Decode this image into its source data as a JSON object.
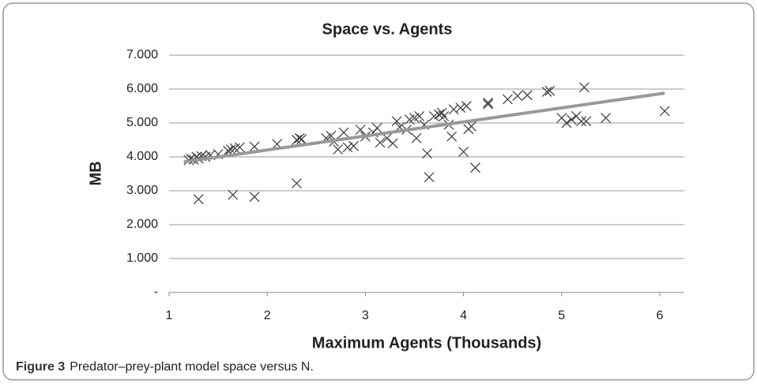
{
  "chart_data": {
    "type": "scatter",
    "title": "Space vs. Agents",
    "xlabel": "Maximum Agents (Thousands)",
    "ylabel": "MB",
    "caption_label": "Figure 3",
    "caption": "Predator–prey-plant model space versus N.",
    "xlim": [
      1,
      6.25
    ],
    "xticks": [
      1,
      2,
      3,
      4,
      5,
      6
    ],
    "ylim": [
      0,
      7
    ],
    "yticks": [
      {
        "value": 0,
        "label": "-"
      },
      {
        "value": 1,
        "label": "1.000"
      },
      {
        "value": 2,
        "label": "2.000"
      },
      {
        "value": 3,
        "label": "3.000"
      },
      {
        "value": 4,
        "label": "4.000"
      },
      {
        "value": 5,
        "label": "5.000"
      },
      {
        "value": 6,
        "label": "6.000"
      },
      {
        "value": 7,
        "label": "7.000"
      }
    ],
    "grid": true,
    "color": "#444444",
    "x": [
      1.2,
      1.22,
      1.25,
      1.28,
      1.3,
      1.33,
      1.37,
      1.42,
      1.5,
      1.3,
      1.6,
      1.63,
      1.67,
      1.72,
      1.65,
      1.87,
      1.87,
      2.1,
      2.3,
      2.33,
      2.35,
      2.3,
      2.6,
      2.65,
      2.68,
      2.72,
      2.78,
      2.82,
      2.88,
      2.95,
      3.0,
      3.08,
      3.12,
      3.15,
      3.22,
      3.28,
      3.32,
      3.35,
      3.42,
      3.45,
      3.5,
      3.52,
      3.55,
      3.6,
      3.63,
      3.65,
      3.7,
      3.75,
      3.78,
      3.8,
      3.85,
      3.88,
      3.9,
      3.97,
      4.0,
      4.03,
      4.05,
      4.08,
      4.12,
      4.25,
      4.25,
      4.45,
      4.55,
      4.65,
      4.85,
      4.88,
      5.0,
      5.05,
      5.1,
      5.15,
      5.2,
      5.23,
      5.25,
      5.45,
      6.05
    ],
    "values": [
      3.9,
      3.95,
      3.92,
      4.0,
      3.95,
      4.02,
      4.0,
      4.05,
      4.08,
      2.75,
      4.18,
      4.22,
      4.25,
      4.28,
      2.88,
      4.3,
      2.82,
      4.38,
      4.5,
      4.55,
      4.52,
      3.22,
      4.55,
      4.62,
      4.45,
      4.22,
      4.72,
      4.28,
      4.32,
      4.8,
      4.6,
      4.72,
      4.85,
      4.42,
      4.55,
      4.4,
      5.05,
      4.88,
      4.8,
      5.1,
      5.15,
      4.55,
      5.2,
      4.95,
      4.1,
      3.4,
      5.2,
      5.25,
      5.3,
      5.2,
      4.95,
      4.6,
      5.4,
      5.45,
      4.15,
      5.5,
      4.82,
      4.9,
      3.68,
      5.55,
      5.6,
      5.7,
      5.8,
      5.82,
      5.92,
      5.95,
      5.15,
      5.0,
      5.1,
      5.2,
      5.05,
      6.05,
      5.05,
      5.15,
      5.35
    ],
    "trendline": {
      "color": "#999999",
      "x": [
        1.15,
        6.05
      ],
      "values": [
        3.85,
        5.88
      ]
    }
  }
}
